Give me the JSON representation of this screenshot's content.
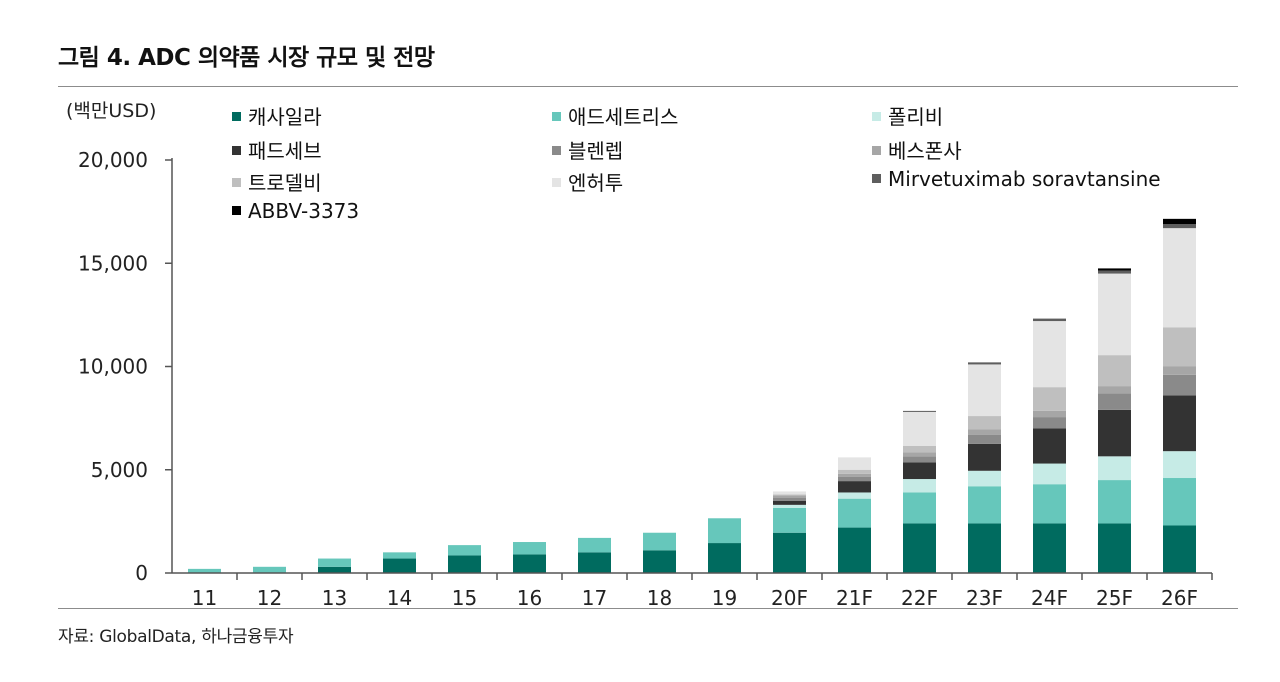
{
  "page": {
    "title": "그림 4. ADC 의약품 시장 규모 및 전망",
    "source": "자료: GlobalData, 하나금융투자"
  },
  "chart_data": {
    "type": "bar",
    "stacked": true,
    "unit_label": "(백만USD)",
    "categories": [
      "11",
      "12",
      "13",
      "14",
      "15",
      "16",
      "17",
      "18",
      "19",
      "20F",
      "21F",
      "22F",
      "23F",
      "24F",
      "25F",
      "26F"
    ],
    "ylim": [
      0,
      20000
    ],
    "yticks": [
      0,
      5000,
      10000,
      15000,
      20000
    ],
    "ytick_labels": [
      "0",
      "5,000",
      "10,000",
      "15,000",
      "20,000"
    ],
    "grid": false,
    "legend_position": "top",
    "series": [
      {
        "name": "캐사일라",
        "color": "#006b5f",
        "values": [
          0,
          0,
          300,
          700,
          850,
          900,
          1000,
          1100,
          1450,
          1950,
          2200,
          2400,
          2400,
          2400,
          2400,
          2300
        ]
      },
      {
        "name": "애드세트리스",
        "color": "#66c7bb",
        "values": [
          200,
          300,
          400,
          300,
          500,
          600,
          700,
          850,
          1200,
          1200,
          1400,
          1500,
          1800,
          1900,
          2100,
          2300
        ]
      },
      {
        "name": "폴리비",
        "color": "#c6ebe6",
        "values": [
          0,
          0,
          0,
          0,
          0,
          0,
          0,
          0,
          0,
          150,
          300,
          650,
          750,
          1000,
          1150,
          1300
        ]
      },
      {
        "name": "패드세브",
        "color": "#333333",
        "values": [
          0,
          0,
          0,
          0,
          0,
          0,
          0,
          0,
          0,
          200,
          550,
          800,
          1300,
          1700,
          2250,
          2700
        ]
      },
      {
        "name": "블렌렙",
        "color": "#8a8a8a",
        "values": [
          0,
          0,
          0,
          0,
          0,
          0,
          0,
          0,
          0,
          150,
          200,
          300,
          450,
          550,
          800,
          1000
        ]
      },
      {
        "name": "베스폰사",
        "color": "#a6a6a6",
        "values": [
          0,
          0,
          0,
          0,
          0,
          0,
          0,
          0,
          0,
          100,
          150,
          200,
          250,
          300,
          350,
          400
        ]
      },
      {
        "name": "트로델비",
        "color": "#bfbfbf",
        "values": [
          0,
          0,
          0,
          0,
          0,
          0,
          0,
          0,
          0,
          50,
          200,
          300,
          650,
          1150,
          1500,
          1900
        ]
      },
      {
        "name": "엔허투",
        "color": "#e4e4e4",
        "values": [
          0,
          0,
          0,
          0,
          0,
          0,
          0,
          0,
          0,
          150,
          600,
          1650,
          2500,
          3200,
          3950,
          4800
        ]
      },
      {
        "name": "Mirvetuximab soravtansine",
        "color": "#5e5e5e",
        "values": [
          0,
          0,
          0,
          0,
          0,
          0,
          0,
          0,
          0,
          0,
          0,
          50,
          100,
          120,
          150,
          200
        ]
      },
      {
        "name": "ABBV-3373",
        "color": "#000000",
        "values": [
          0,
          0,
          0,
          0,
          0,
          0,
          0,
          0,
          0,
          0,
          0,
          0,
          0,
          0,
          100,
          250
        ]
      }
    ]
  }
}
